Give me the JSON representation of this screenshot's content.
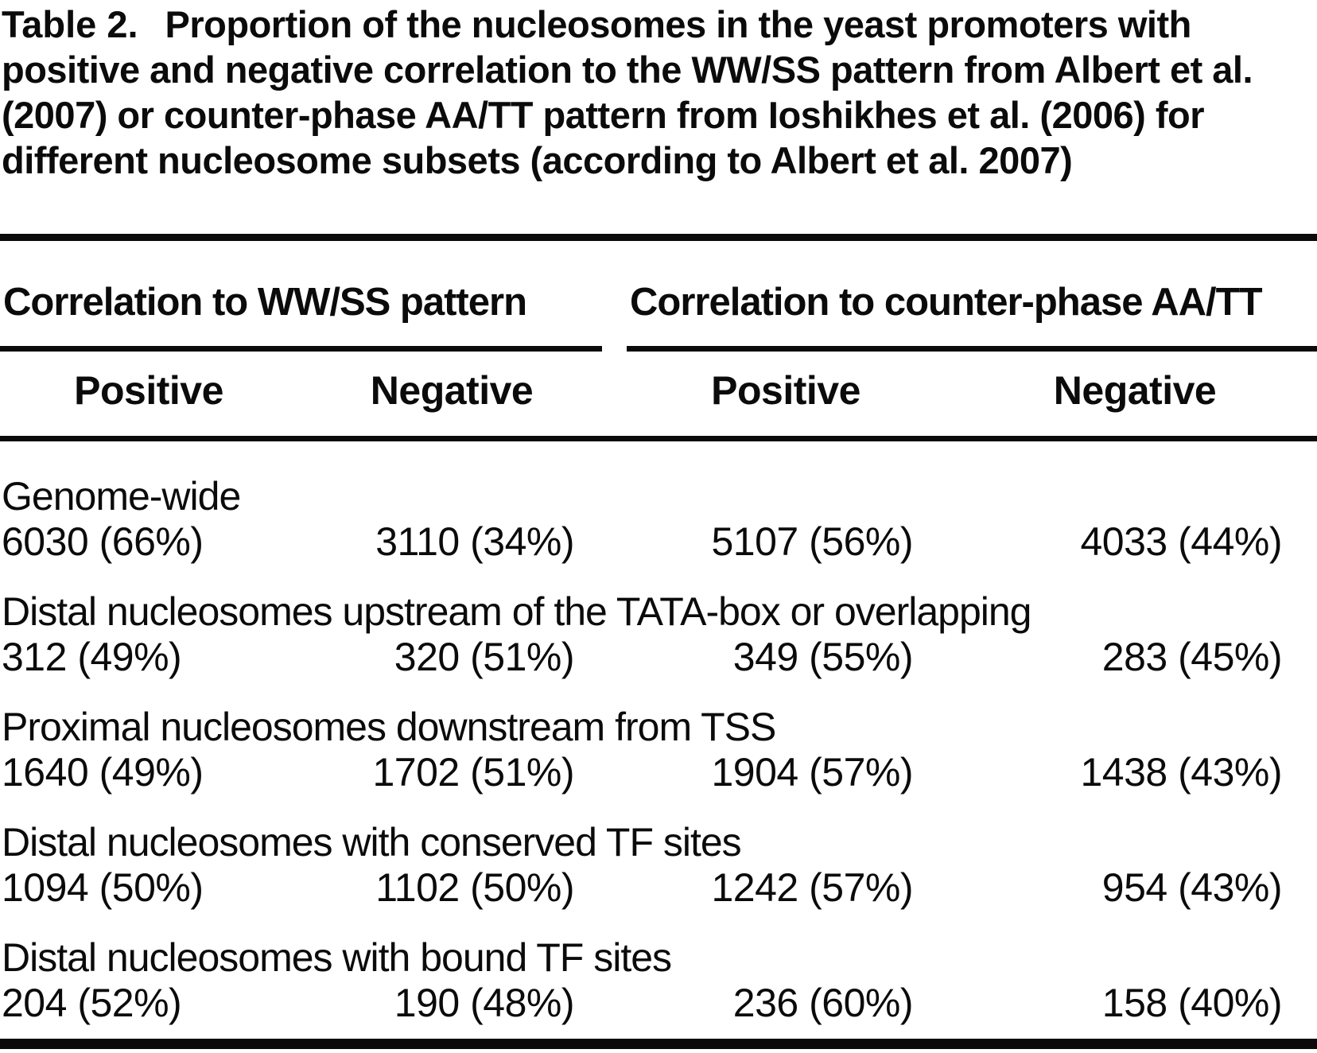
{
  "title": {
    "label": "Table 2.",
    "text": "Proportion of the nucleosomes in the yeast promoters with positive and negative correlation to the WW/SS pattern from Albert et al. (2007) or counter-phase AA/TT pattern from Ioshikhes et al. (2006) for different nucleosome subsets (according to Albert et al. 2007)"
  },
  "table": {
    "column_groups": [
      {
        "label": "Correlation to WW/SS pattern",
        "columns": [
          "Positive",
          "Negative"
        ]
      },
      {
        "label": "Correlation to counter-phase AA/TT",
        "columns": [
          "Positive",
          "Negative"
        ]
      }
    ],
    "rows": [
      {
        "label": "Genome-wide",
        "values": [
          "6030 (66%)",
          "3110 (34%)",
          "5107 (56%)",
          "4033 (44%)"
        ]
      },
      {
        "label": "Distal nucleosomes upstream of the TATA-box or overlapping",
        "values": [
          "312 (49%)",
          "320 (51%)",
          "349 (55%)",
          "283 (45%)"
        ]
      },
      {
        "label": "Proximal nucleosomes downstream from TSS",
        "values": [
          "1640 (49%)",
          "1702 (51%)",
          "1904 (57%)",
          "1438 (43%)"
        ]
      },
      {
        "label": "Distal nucleosomes with conserved TF sites",
        "values": [
          "1094 (50%)",
          "1102 (50%)",
          "1242 (57%)",
          "954 (43%)"
        ]
      },
      {
        "label": "Distal nucleosomes with bound TF sites",
        "values": [
          "204 (52%)",
          "190 (48%)",
          "236 (60%)",
          "158 (40%)"
        ]
      }
    ]
  },
  "colors": {
    "text": "#0b0b0b",
    "background": "#ffffff",
    "rule": "#0b0b0b"
  }
}
